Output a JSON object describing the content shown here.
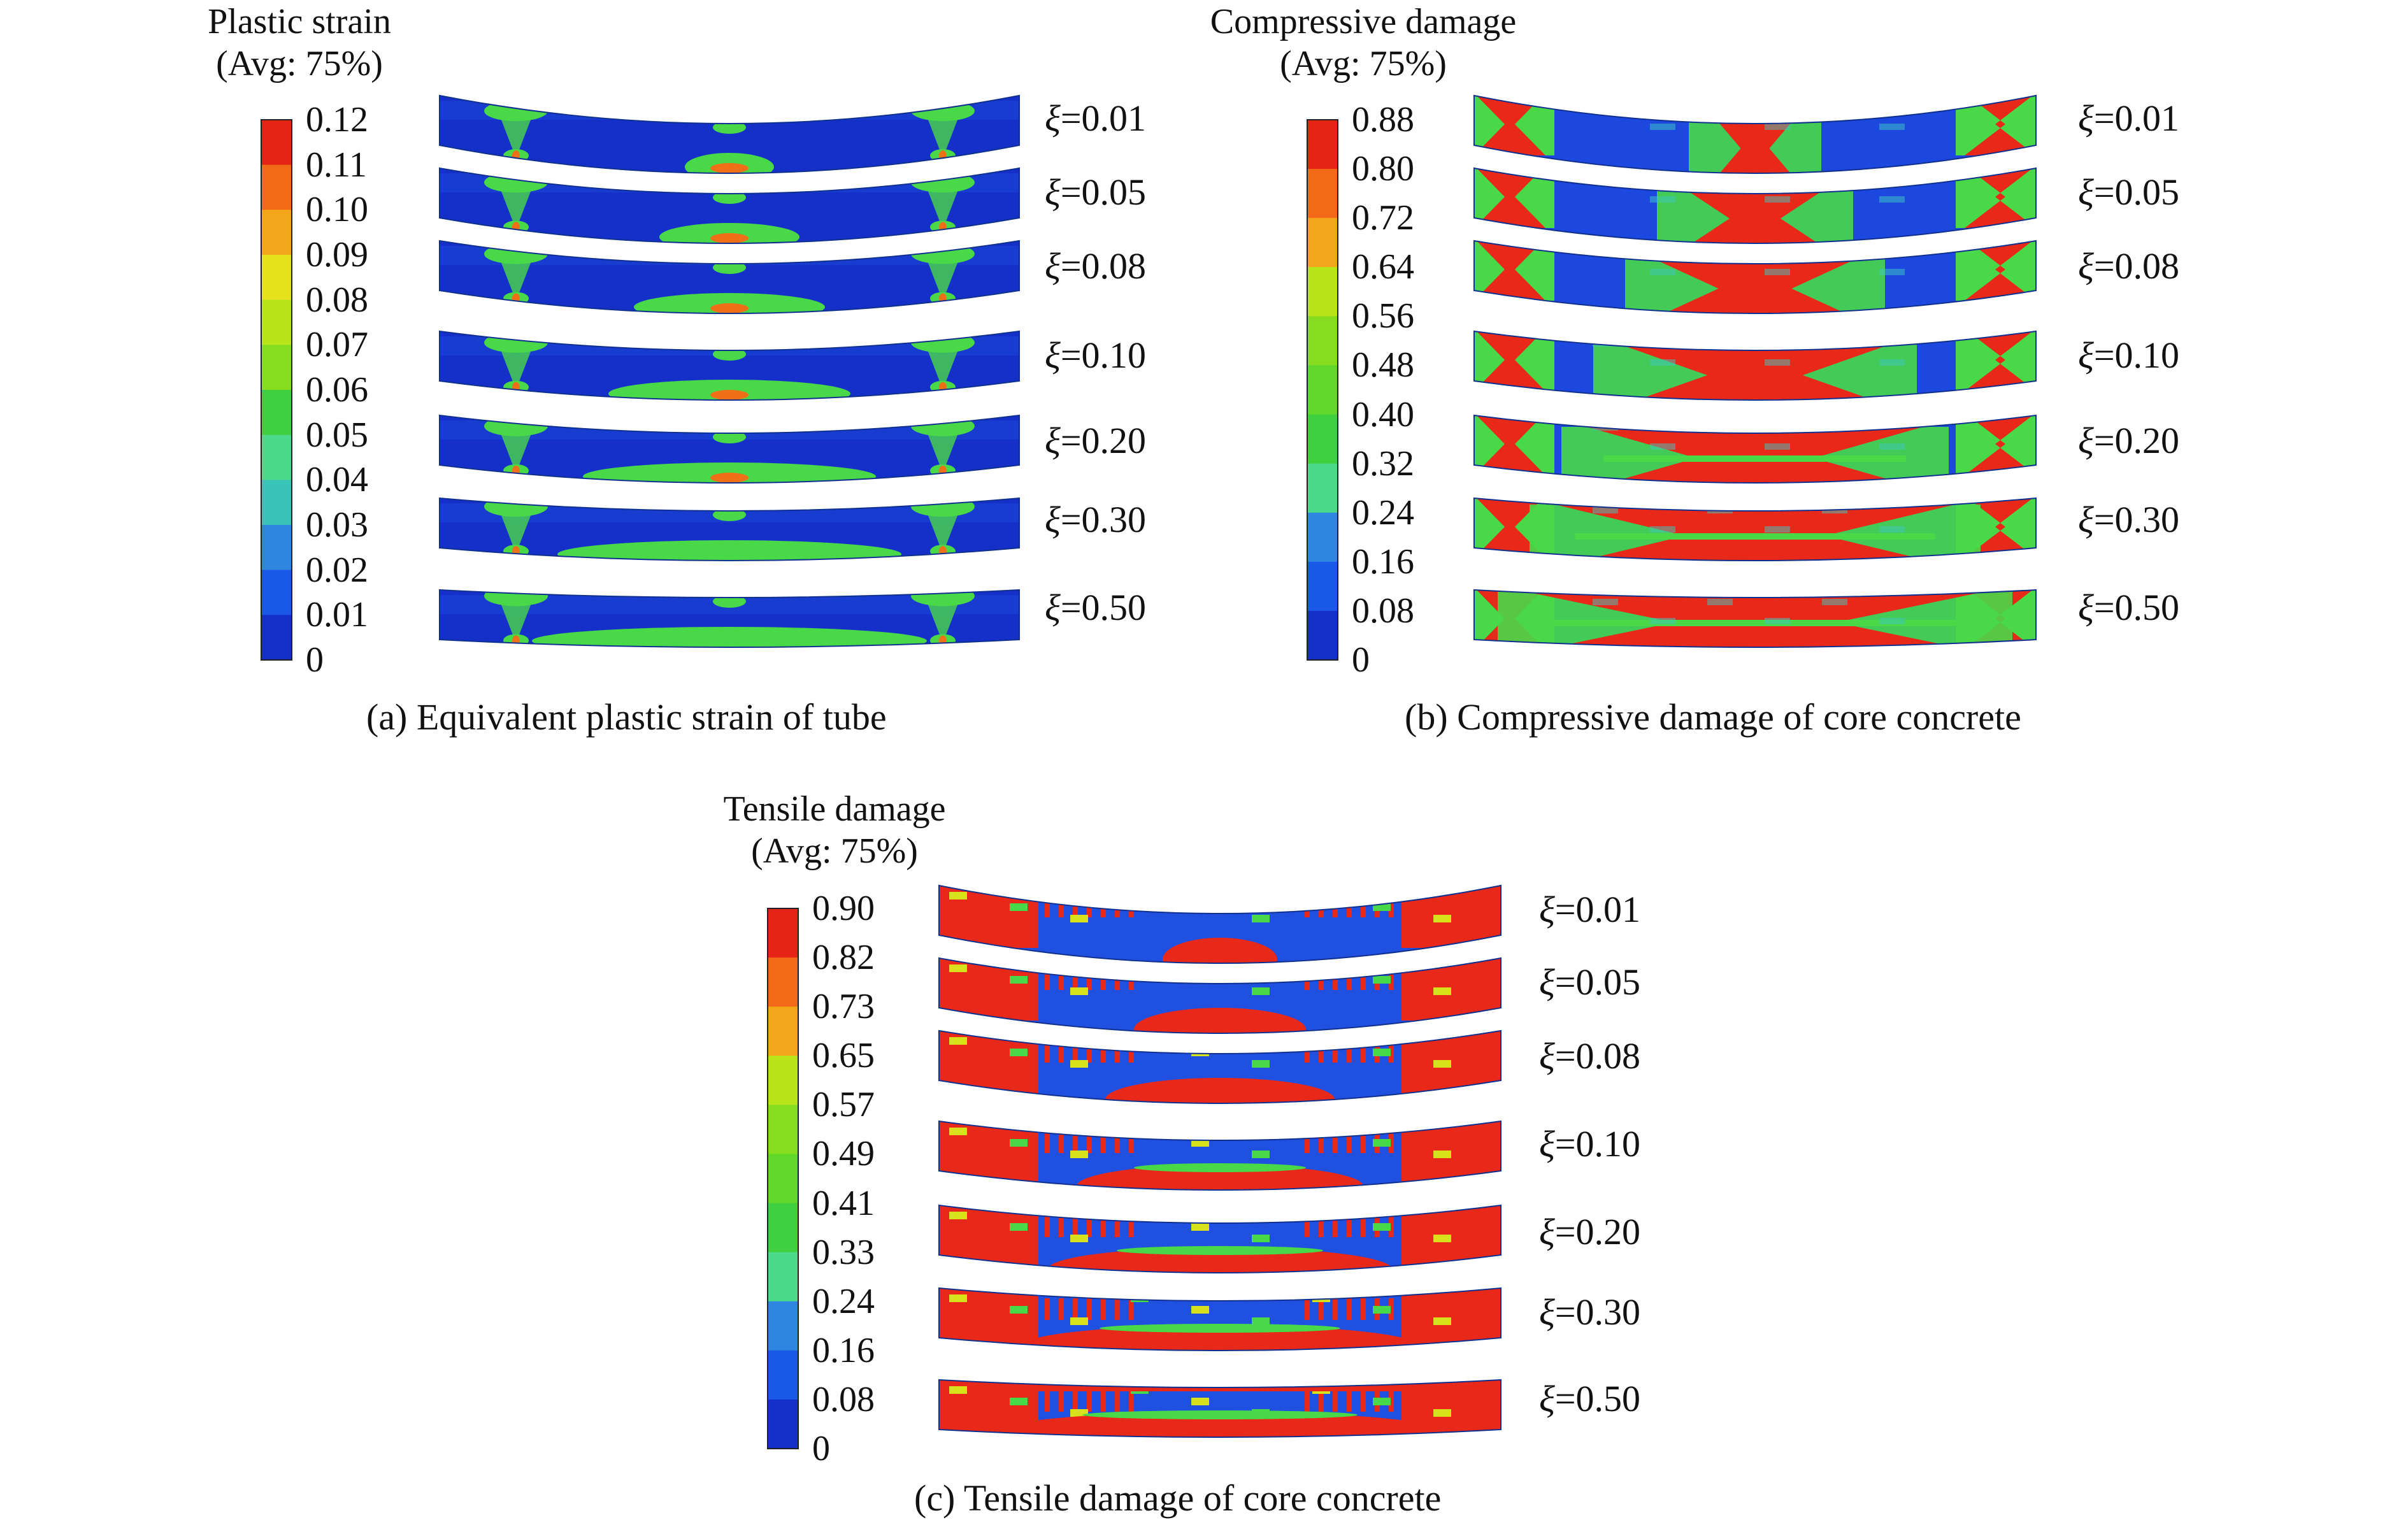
{
  "colors": {
    "scale": [
      "#1530c8",
      "#1a58e8",
      "#2f86e0",
      "#39c4b8",
      "#4cd98a",
      "#3ed03e",
      "#5fd82a",
      "#86dd1f",
      "#b8e41a",
      "#e6e21e",
      "#f2a71a",
      "#f26a18",
      "#e52416"
    ],
    "deep_blue": "#1530c8",
    "mid_blue": "#2050e0",
    "green": "#48d848",
    "cyan": "#3fc8c0",
    "red": "#e82818",
    "orange": "#f07018",
    "background": "#ffffff"
  },
  "panels": [
    {
      "id": "a",
      "legend_title": "Plastic strain",
      "legend_sub": "(Avg: 75%)",
      "ticks": [
        "0.12",
        "0.11",
        "0.10",
        "0.09",
        "0.08",
        "0.07",
        "0.06",
        "0.05",
        "0.04",
        "0.03",
        "0.02",
        "0.01",
        "0"
      ],
      "xi_labels": [
        "=0.01",
        "=0.05",
        "=0.08",
        "=0.10",
        "=0.20",
        "=0.30",
        "=0.50"
      ],
      "xi_symbol": "ξ",
      "caption": "(a) Equivalent plastic strain of tube"
    },
    {
      "id": "b",
      "legend_title": "Compressive damage",
      "legend_sub": "(Avg: 75%)",
      "ticks": [
        "0.88",
        "0.80",
        "0.72",
        "0.64",
        "0.56",
        "0.48",
        "0.40",
        "0.32",
        "0.24",
        "0.16",
        "0.08",
        "0"
      ],
      "xi_labels": [
        "=0.01",
        "=0.05",
        "=0.08",
        "=0.10",
        "=0.20",
        "=0.30",
        "=0.50"
      ],
      "xi_symbol": "ξ",
      "caption": "(b) Compressive damage of core concrete"
    },
    {
      "id": "c",
      "legend_title": "Tensile damage",
      "legend_sub": "(Avg: 75%)",
      "ticks": [
        "0.90",
        "0.82",
        "0.73",
        "0.65",
        "0.57",
        "0.49",
        "0.41",
        "0.33",
        "0.24",
        "0.16",
        "0.08",
        "0"
      ],
      "xi_labels": [
        "=0.01",
        "=0.05",
        "=0.08",
        "=0.10",
        "=0.20",
        "=0.30",
        "=0.50"
      ],
      "xi_symbol": "ξ",
      "caption": "(c) Tensile damage of core concrete"
    }
  ]
}
